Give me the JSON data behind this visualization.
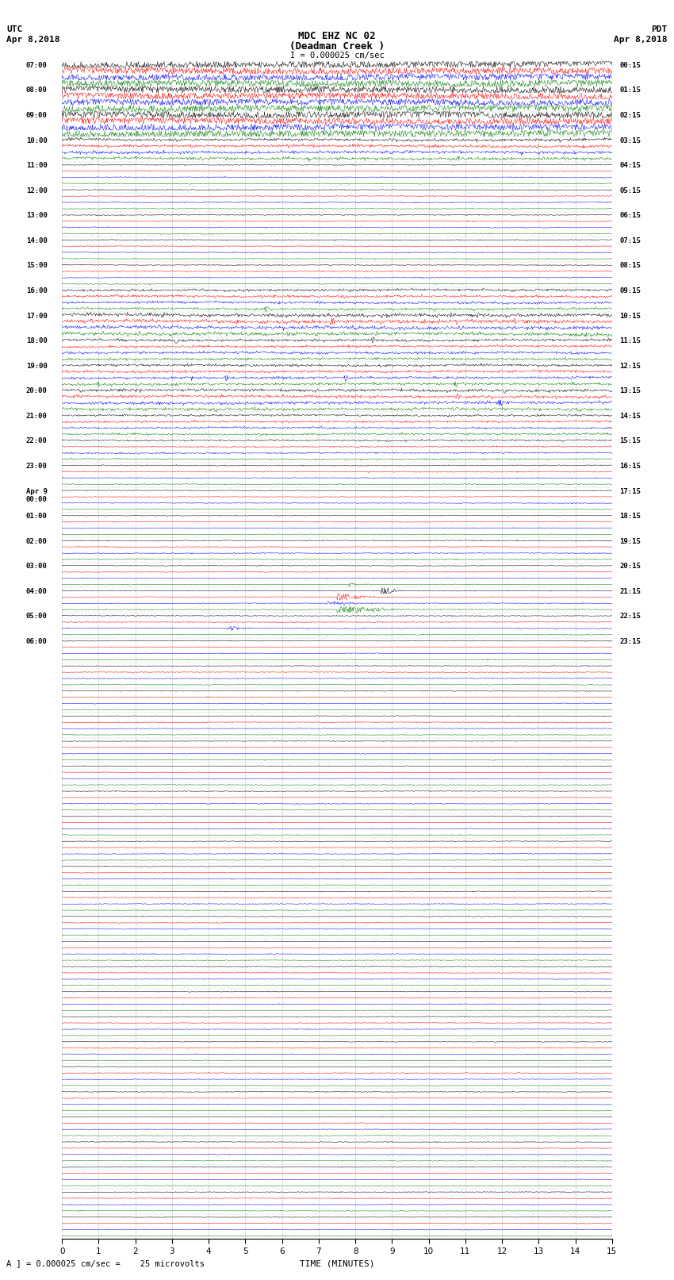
{
  "title_line1": "MDC EHZ NC 02",
  "title_line2": "(Deadman Creek )",
  "title_line3": "I = 0.000025 cm/sec",
  "left_header_line1": "UTC",
  "left_header_line2": "Apr 8,2018",
  "right_header_line1": "PDT",
  "right_header_line2": "Apr 8,2018",
  "scale_label": "A ] = 0.000025 cm/sec =    25 microvolts",
  "xlabel": "TIME (MINUTES)",
  "bg_color": "#ffffff",
  "trace_colors": [
    "black",
    "red",
    "blue",
    "green"
  ],
  "num_hour_rows": 47,
  "traces_per_hour": 4,
  "minutes_per_row": 15,
  "left_labels": [
    "07:00",
    "08:00",
    "09:00",
    "10:00",
    "11:00",
    "12:00",
    "13:00",
    "14:00",
    "15:00",
    "16:00",
    "17:00",
    "18:00",
    "19:00",
    "20:00",
    "21:00",
    "22:00",
    "23:00",
    "Apr 9\n00:00",
    "01:00",
    "02:00",
    "03:00",
    "04:00",
    "05:00",
    "06:00"
  ],
  "left_label_rows": [
    0,
    4,
    8,
    12,
    16,
    20,
    24,
    28,
    32,
    36,
    40,
    44,
    48,
    52,
    56,
    60,
    64,
    68,
    72,
    76,
    80,
    84,
    88,
    92
  ],
  "right_labels": [
    "00:15",
    "01:15",
    "02:15",
    "03:15",
    "04:15",
    "05:15",
    "06:15",
    "07:15",
    "08:15",
    "09:15",
    "10:15",
    "11:15",
    "12:15",
    "13:15",
    "14:15",
    "15:15",
    "16:15",
    "17:15",
    "18:15",
    "19:15",
    "20:15",
    "21:15",
    "22:15",
    "23:15"
  ],
  "right_label_rows": [
    0,
    4,
    8,
    12,
    16,
    20,
    24,
    28,
    32,
    36,
    40,
    44,
    48,
    52,
    56,
    60,
    64,
    68,
    72,
    76,
    80,
    84,
    88,
    92
  ]
}
